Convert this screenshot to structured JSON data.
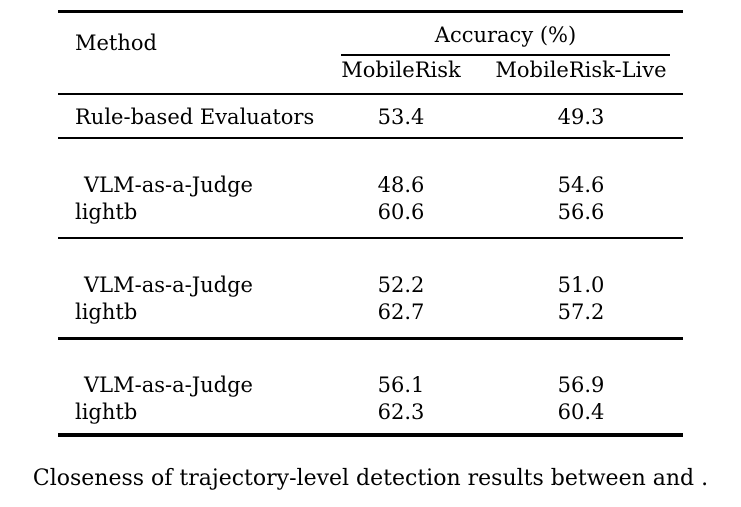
{
  "page": {
    "background": "#ffffff",
    "text_color": "#000000"
  },
  "table": {
    "header": {
      "method": "Method",
      "accuracy_group": "Accuracy (%)",
      "columns": [
        "MobileRisk",
        "MobileRisk-Live"
      ]
    },
    "groups": [
      {
        "rows": [
          {
            "method": "Rule-based Evaluators",
            "values": [
              "53.4",
              "49.3"
            ]
          }
        ]
      },
      {
        "rows": [
          {
            "method": "VLM-as-a-Judge",
            "values": [
              "48.6",
              "54.6"
            ]
          },
          {
            "method": "lightb",
            "values": [
              "60.6",
              "56.6"
            ]
          }
        ]
      },
      {
        "rows": [
          {
            "method": "VLM-as-a-Judge",
            "values": [
              "52.2",
              "51.0"
            ]
          },
          {
            "method": "lightb",
            "values": [
              "62.7",
              "57.2"
            ]
          }
        ]
      },
      {
        "rows": [
          {
            "method": "VLM-as-a-Judge",
            "values": [
              "56.1",
              "56.9"
            ]
          },
          {
            "method": "lightb",
            "values": [
              "62.3",
              "60.4"
            ]
          }
        ]
      }
    ],
    "caption": "Closeness of trajectory-level detection results between and ."
  }
}
